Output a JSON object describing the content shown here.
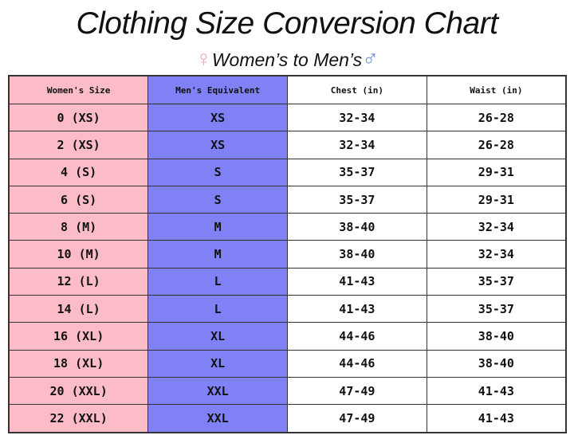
{
  "header": {
    "title": "Clothing Size Conversion Chart",
    "female_symbol": "♀",
    "subtitle": "Women’s to Men’s",
    "male_symbol": "♂"
  },
  "table": {
    "columns": [
      "Women's Size",
      "Men's Equivalent",
      "Chest (in)",
      "Waist (in)"
    ],
    "rows": [
      [
        "0 (XS)",
        "XS",
        "32-34",
        "26-28"
      ],
      [
        "2 (XS)",
        "XS",
        "32-34",
        "26-28"
      ],
      [
        "4 (S)",
        "S",
        "35-37",
        "29-31"
      ],
      [
        "6 (S)",
        "S",
        "35-37",
        "29-31"
      ],
      [
        "8 (M)",
        "M",
        "38-40",
        "32-34"
      ],
      [
        "10 (M)",
        "M",
        "38-40",
        "32-34"
      ],
      [
        "12 (L)",
        "L",
        "41-43",
        "35-37"
      ],
      [
        "14 (L)",
        "L",
        "41-43",
        "35-37"
      ],
      [
        "16 (XL)",
        "XL",
        "44-46",
        "38-40"
      ],
      [
        "18 (XL)",
        "XL",
        "44-46",
        "38-40"
      ],
      [
        "20 (XXL)",
        "XXL",
        "47-49",
        "41-43"
      ],
      [
        "22 (XXL)",
        "XXL",
        "47-49",
        "41-43"
      ]
    ]
  }
}
